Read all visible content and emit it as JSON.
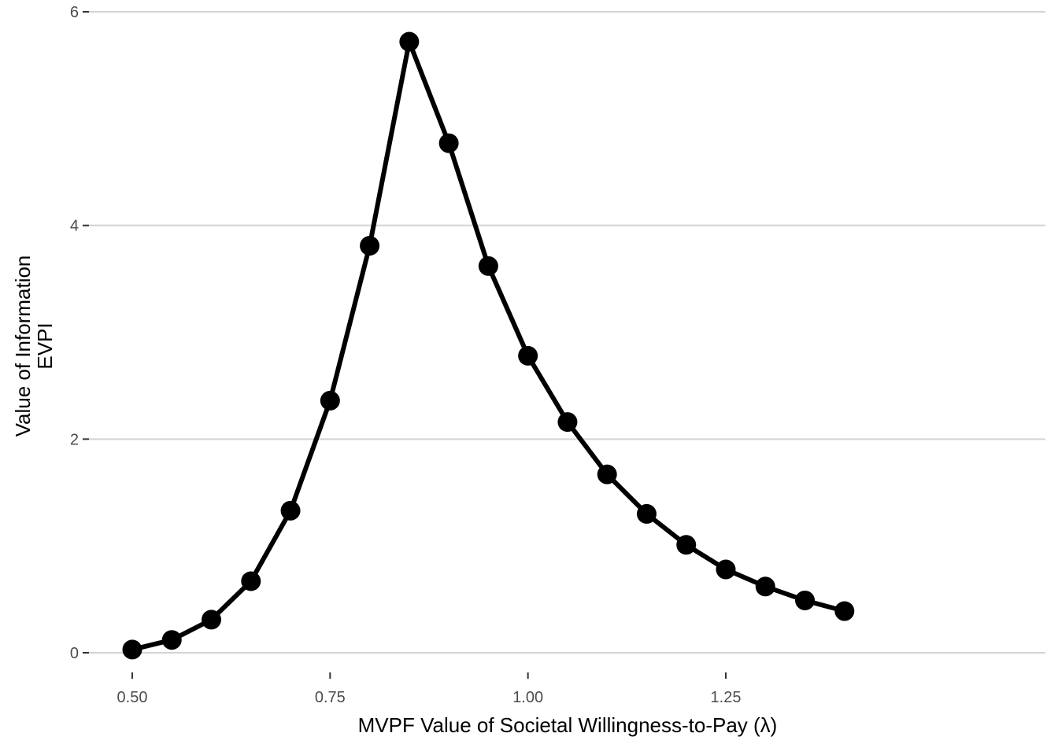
{
  "chart_data": {
    "type": "line",
    "title": "",
    "xlabel": "MVPF Value of Societal Willingness-to-Pay (λ)",
    "ylabel_lines": [
      "Value of Information",
      "EVPI"
    ],
    "xlim": [
      0.5,
      1.4
    ],
    "ylim": [
      0,
      6
    ],
    "x_ticks": [
      0.5,
      0.75,
      1.0,
      1.25
    ],
    "x_tick_labels": [
      "0.50",
      "0.75",
      "1.00",
      "1.25"
    ],
    "y_ticks": [
      0,
      2,
      4,
      6
    ],
    "y_tick_labels": [
      "0",
      "2",
      "4",
      "6"
    ],
    "grid": "horizontal major",
    "legend": "none",
    "series": [
      {
        "x": [
          0.5,
          0.55,
          0.6,
          0.65,
          0.7,
          0.75,
          0.8,
          0.85,
          0.9,
          0.95,
          1.0,
          1.05,
          1.1,
          1.15,
          1.2,
          1.25,
          1.3,
          1.35,
          1.4
        ],
        "values": [
          0.03,
          0.12,
          0.31,
          0.67,
          1.33,
          2.36,
          3.81,
          5.72,
          4.77,
          3.62,
          2.78,
          2.16,
          1.67,
          1.3,
          1.01,
          0.78,
          0.62,
          0.49,
          0.39
        ]
      }
    ],
    "colors": {
      "line": "#000000",
      "grid": "#d3d3d3",
      "tick_text": "#4d4d4d",
      "axis_title": "#000000"
    }
  }
}
